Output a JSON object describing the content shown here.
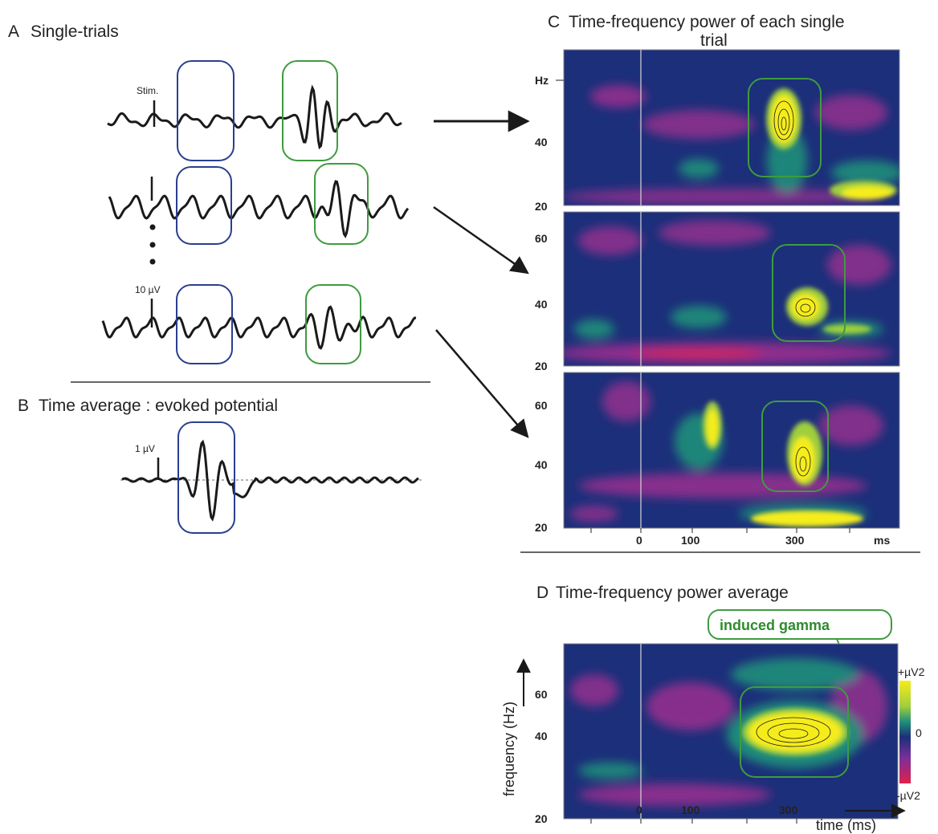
{
  "panels": {
    "A": {
      "letter": "A",
      "title": "Single-trials",
      "stim_label": "Stim.",
      "scale_label": "10 µV"
    },
    "B": {
      "letter": "B",
      "title": "Time average : evoked potential",
      "scale_label": "1 µV"
    },
    "C": {
      "letter": "C",
      "title_line1": "Time-frequency power of each single",
      "title_line2": "trial",
      "hz_label": "Hz",
      "y_ticks_top": [
        "40",
        "20"
      ],
      "y_ticks_mid": [
        "60",
        "40",
        "20"
      ],
      "y_ticks_bot": [
        "60",
        "40",
        "20"
      ],
      "x_ticks": [
        "0",
        "100",
        "300"
      ],
      "x_unit": "ms"
    },
    "D": {
      "letter": "D",
      "title": "Time-frequency power average",
      "callout": "induced gamma",
      "y_label": "frequency (Hz)",
      "y_ticks": [
        "60",
        "40",
        "20"
      ],
      "x_ticks": [
        "0",
        "100",
        "300"
      ],
      "x_label": "time (ms)",
      "colorbar": {
        "top": "+µV2",
        "mid": "0",
        "bottom": "-µV2"
      }
    }
  },
  "colors": {
    "trace": "#1a1a1a",
    "evoked_box": "#2a3f8f",
    "induced_box": "#3f9b3f",
    "tf_background": "#1c2f7a",
    "tf_negative": "#9a2f8f",
    "tf_positive": "#f5ec1d"
  }
}
